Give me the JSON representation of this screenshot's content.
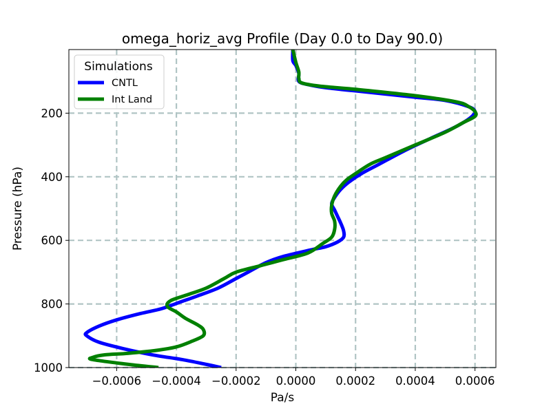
{
  "chart_data": {
    "type": "line",
    "title": "omega_horiz_avg Profile (Day 0.0 to Day 90.0)",
    "xlabel": "Pa/s",
    "ylabel": "Pressure (hPa)",
    "xlim": [
      -0.00076,
      0.00067
    ],
    "ylim": [
      1000,
      0
    ],
    "y_inverted": true,
    "grid": true,
    "x_ticks": [
      -0.0006,
      -0.0004,
      -0.0002,
      0.0,
      0.0002,
      0.0004,
      0.0006
    ],
    "x_tick_labels": [
      "−0.0006",
      "−0.0004",
      "−0.0002",
      "0.0000",
      "0.0002",
      "0.0004",
      "0.0006"
    ],
    "y_ticks": [
      200,
      400,
      600,
      800,
      1000
    ],
    "y_tick_labels": [
      "200",
      "400",
      "600",
      "800",
      "1000"
    ],
    "legend": {
      "title": "Simulations",
      "position": "top-left"
    },
    "series": [
      {
        "name": "CNTL",
        "color": "#0000ff",
        "points": [
          [
            -0.00025,
            1000
          ],
          [
            -0.0003,
            990
          ],
          [
            -0.00038,
            975
          ],
          [
            -0.00048,
            960
          ],
          [
            -0.00058,
            940
          ],
          [
            -0.00066,
            920
          ],
          [
            -0.0007,
            900
          ],
          [
            -0.0007,
            890
          ],
          [
            -0.00066,
            870
          ],
          [
            -0.0006,
            850
          ],
          [
            -0.00052,
            830
          ],
          [
            -0.00045,
            815
          ],
          [
            -0.00039,
            795
          ],
          [
            -0.00033,
            775
          ],
          [
            -0.00026,
            750
          ],
          [
            -0.0002,
            720
          ],
          [
            -0.00016,
            700
          ],
          [
            -0.0001,
            670
          ],
          [
            -4e-05,
            650
          ],
          [
            5e-05,
            630
          ],
          [
            0.0001,
            620
          ],
          [
            0.00014,
            605
          ],
          [
            0.00016,
            590
          ],
          [
            0.00016,
            570
          ],
          [
            0.00015,
            545
          ],
          [
            0.00014,
            525
          ],
          [
            0.00013,
            505
          ],
          [
            0.00012,
            485
          ],
          [
            0.00013,
            465
          ],
          [
            0.00015,
            440
          ],
          [
            0.00018,
            415
          ],
          [
            0.00022,
            390
          ],
          [
            0.00028,
            360
          ],
          [
            0.00036,
            320
          ],
          [
            0.00045,
            280
          ],
          [
            0.00052,
            250
          ],
          [
            0.00056,
            230
          ],
          [
            0.00059,
            210
          ],
          [
            0.0006,
            195
          ],
          [
            0.00058,
            180
          ],
          [
            0.0005,
            160
          ],
          [
            0.0004,
            150
          ],
          [
            0.0002,
            130
          ],
          [
            0.0001,
            120
          ],
          [
            4e-05,
            110
          ],
          [
            1e-05,
            100
          ],
          [
            1e-05,
            75
          ],
          [
            0.0,
            50
          ],
          [
            -1e-05,
            35
          ],
          [
            -1e-05,
            0
          ]
        ]
      },
      {
        "name": "Int Land",
        "color": "#008000",
        "points": [
          [
            -0.00046,
            1000
          ],
          [
            -0.00056,
            990
          ],
          [
            -0.00068,
            975
          ],
          [
            -0.00068,
            968
          ],
          [
            -0.00064,
            960
          ],
          [
            -0.00056,
            955
          ],
          [
            -0.00046,
            945
          ],
          [
            -0.0004,
            935
          ],
          [
            -0.00035,
            918
          ],
          [
            -0.00031,
            900
          ],
          [
            -0.00031,
            880
          ],
          [
            -0.00033,
            865
          ],
          [
            -0.00037,
            845
          ],
          [
            -0.0004,
            825
          ],
          [
            -0.00043,
            808
          ],
          [
            -0.00042,
            790
          ],
          [
            -0.00036,
            770
          ],
          [
            -0.0003,
            750
          ],
          [
            -0.00024,
            720
          ],
          [
            -0.0002,
            700
          ],
          [
            -0.00012,
            680
          ],
          [
            -4e-05,
            660
          ],
          [
            4e-05,
            640
          ],
          [
            9e-05,
            610
          ],
          [
            0.00012,
            590
          ],
          [
            0.00013,
            565
          ],
          [
            0.00013,
            540
          ],
          [
            0.00012,
            515
          ],
          [
            0.00012,
            490
          ],
          [
            0.00013,
            460
          ],
          [
            0.00015,
            430
          ],
          [
            0.00017,
            410
          ],
          [
            0.0002,
            390
          ],
          [
            0.00025,
            360
          ],
          [
            0.0003,
            340
          ],
          [
            0.0004,
            300
          ],
          [
            0.0005,
            260
          ],
          [
            0.00056,
            230
          ],
          [
            0.0006,
            210
          ],
          [
            0.0006,
            195
          ],
          [
            0.00058,
            180
          ],
          [
            0.00054,
            165
          ],
          [
            0.0004,
            145
          ],
          [
            0.0002,
            125
          ],
          [
            8e-05,
            115
          ],
          [
            2e-05,
            105
          ],
          [
            1e-05,
            90
          ],
          [
            1e-05,
            70
          ],
          [
            0.0,
            40
          ],
          [
            -1e-05,
            0
          ]
        ]
      }
    ]
  }
}
